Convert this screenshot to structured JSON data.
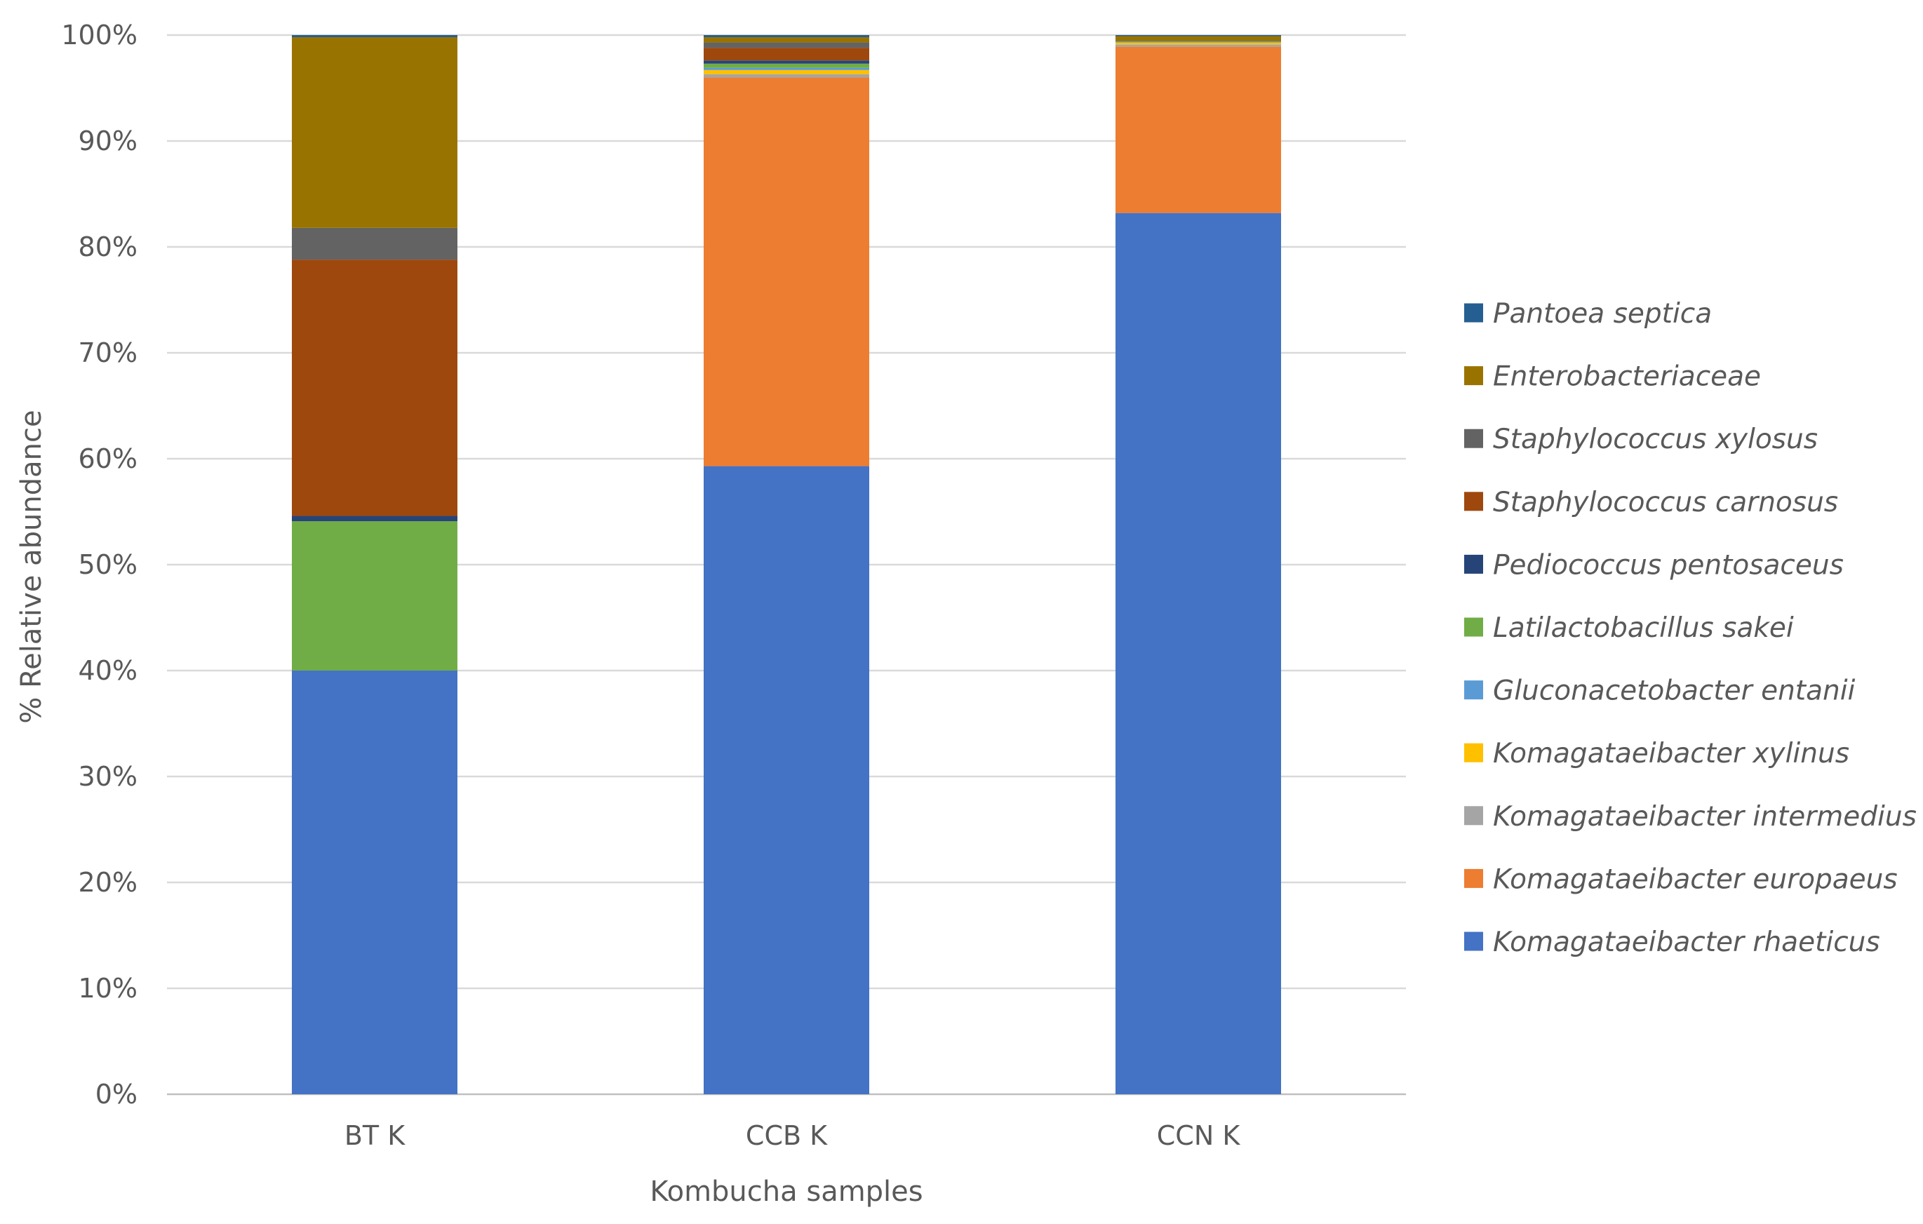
{
  "chart_data": {
    "type": "bar",
    "stacked": "percent",
    "title": "",
    "xlabel": "Kombucha samples",
    "ylabel": "% Relative abundance",
    "ylim": [
      0,
      100
    ],
    "y_ticks": [
      0,
      10,
      20,
      30,
      40,
      50,
      60,
      70,
      80,
      90,
      100
    ],
    "y_tick_labels": [
      "0%",
      "10%",
      "20%",
      "30%",
      "40%",
      "50%",
      "60%",
      "70%",
      "80%",
      "90%",
      "100%"
    ],
    "grid": true,
    "legend_position": "right",
    "categories": [
      "BT K",
      "CCB K",
      "CCN K"
    ],
    "series": [
      {
        "name": "Komagataeibacter rhaeticus",
        "color": "#4472C4",
        "values": [
          40.0,
          59.3,
          83.2
        ]
      },
      {
        "name": "Komagataeibacter europaeus",
        "color": "#ED7D31",
        "values": [
          0.0,
          36.7,
          15.7
        ]
      },
      {
        "name": "Komagataeibacter intermedius",
        "color": "#A5A5A5",
        "values": [
          0.0,
          0.3,
          0.2
        ]
      },
      {
        "name": "Komagataeibacter xylinus",
        "color": "#FFC000",
        "values": [
          0.0,
          0.4,
          0.2
        ]
      },
      {
        "name": "Gluconacetobacter entanii",
        "color": "#5B9BD5",
        "values": [
          0.0,
          0.2,
          0.1
        ]
      },
      {
        "name": "Latilactobacillus sakei",
        "color": "#70AD47",
        "values": [
          14.1,
          0.4,
          0.0
        ]
      },
      {
        "name": "Pediococcus pentosaceus",
        "color": "#264478",
        "values": [
          0.5,
          0.3,
          0.0
        ]
      },
      {
        "name": "Staphylococcus carnosus",
        "color": "#9E480E",
        "values": [
          24.2,
          1.2,
          0.0
        ]
      },
      {
        "name": "Staphylococcus xylosus",
        "color": "#636363",
        "values": [
          3.0,
          0.5,
          0.0
        ]
      },
      {
        "name": "Enterobacteriaceae",
        "color": "#997300",
        "values": [
          18.0,
          0.5,
          0.5
        ]
      },
      {
        "name": "Pantoea septica",
        "color": "#255E91",
        "values": [
          0.2,
          0.2,
          0.1
        ]
      }
    ],
    "legend_order": [
      "Pantoea septica",
      "Enterobacteriaceae",
      "Staphylococcus xylosus",
      "Staphylococcus carnosus",
      "Pediococcus pentosaceus",
      "Latilactobacillus sakei",
      "Gluconacetobacter entanii",
      "Komagataeibacter xylinus",
      "Komagataeibacter intermedius",
      "Komagataeibacter europaeus",
      "Komagataeibacter rhaeticus"
    ],
    "colors": {
      "gridline": "#D9D9D9",
      "axis_line": "#BFBFBF",
      "text": "#595959"
    }
  }
}
